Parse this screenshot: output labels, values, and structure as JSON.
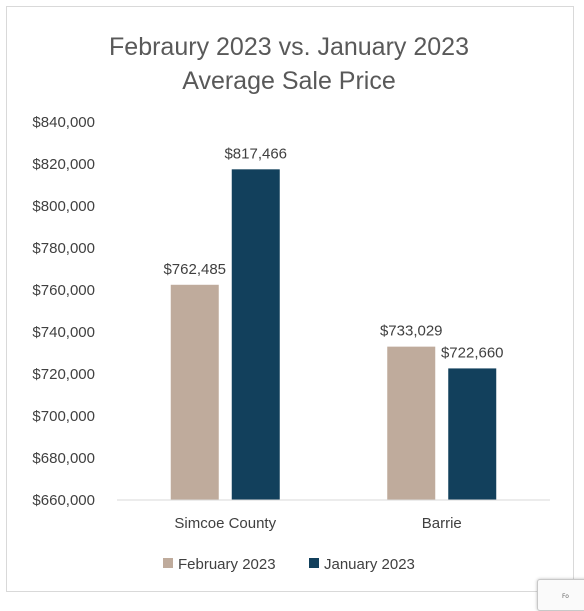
{
  "chart_data": {
    "type": "bar",
    "title_lines": [
      "Febraury 2023 vs. January 2023",
      "Average Sale Price"
    ],
    "categories": [
      "Simcoe County",
      "Barrie"
    ],
    "series": [
      {
        "name": "February 2023",
        "values": [
          762485,
          733029
        ],
        "labels": [
          "$762,485",
          "$733,029"
        ],
        "color": "#bfab9c"
      },
      {
        "name": "January 2023",
        "values": [
          817466,
          722660
        ],
        "labels": [
          "$817,466",
          "$722,660"
        ],
        "color": "#12405c"
      }
    ],
    "ylim": [
      660000,
      840000
    ],
    "yticks": [
      840000,
      820000,
      800000,
      780000,
      760000,
      740000,
      720000,
      700000,
      680000,
      660000
    ],
    "ytick_labels": [
      "$840,000",
      "$820,000",
      "$800,000",
      "$780,000",
      "$760,000",
      "$740,000",
      "$720,000",
      "$700,000",
      "$680,000",
      "$660,000"
    ],
    "grid": false,
    "legend_position": "bottom"
  },
  "corner_tab_text": "Fo"
}
